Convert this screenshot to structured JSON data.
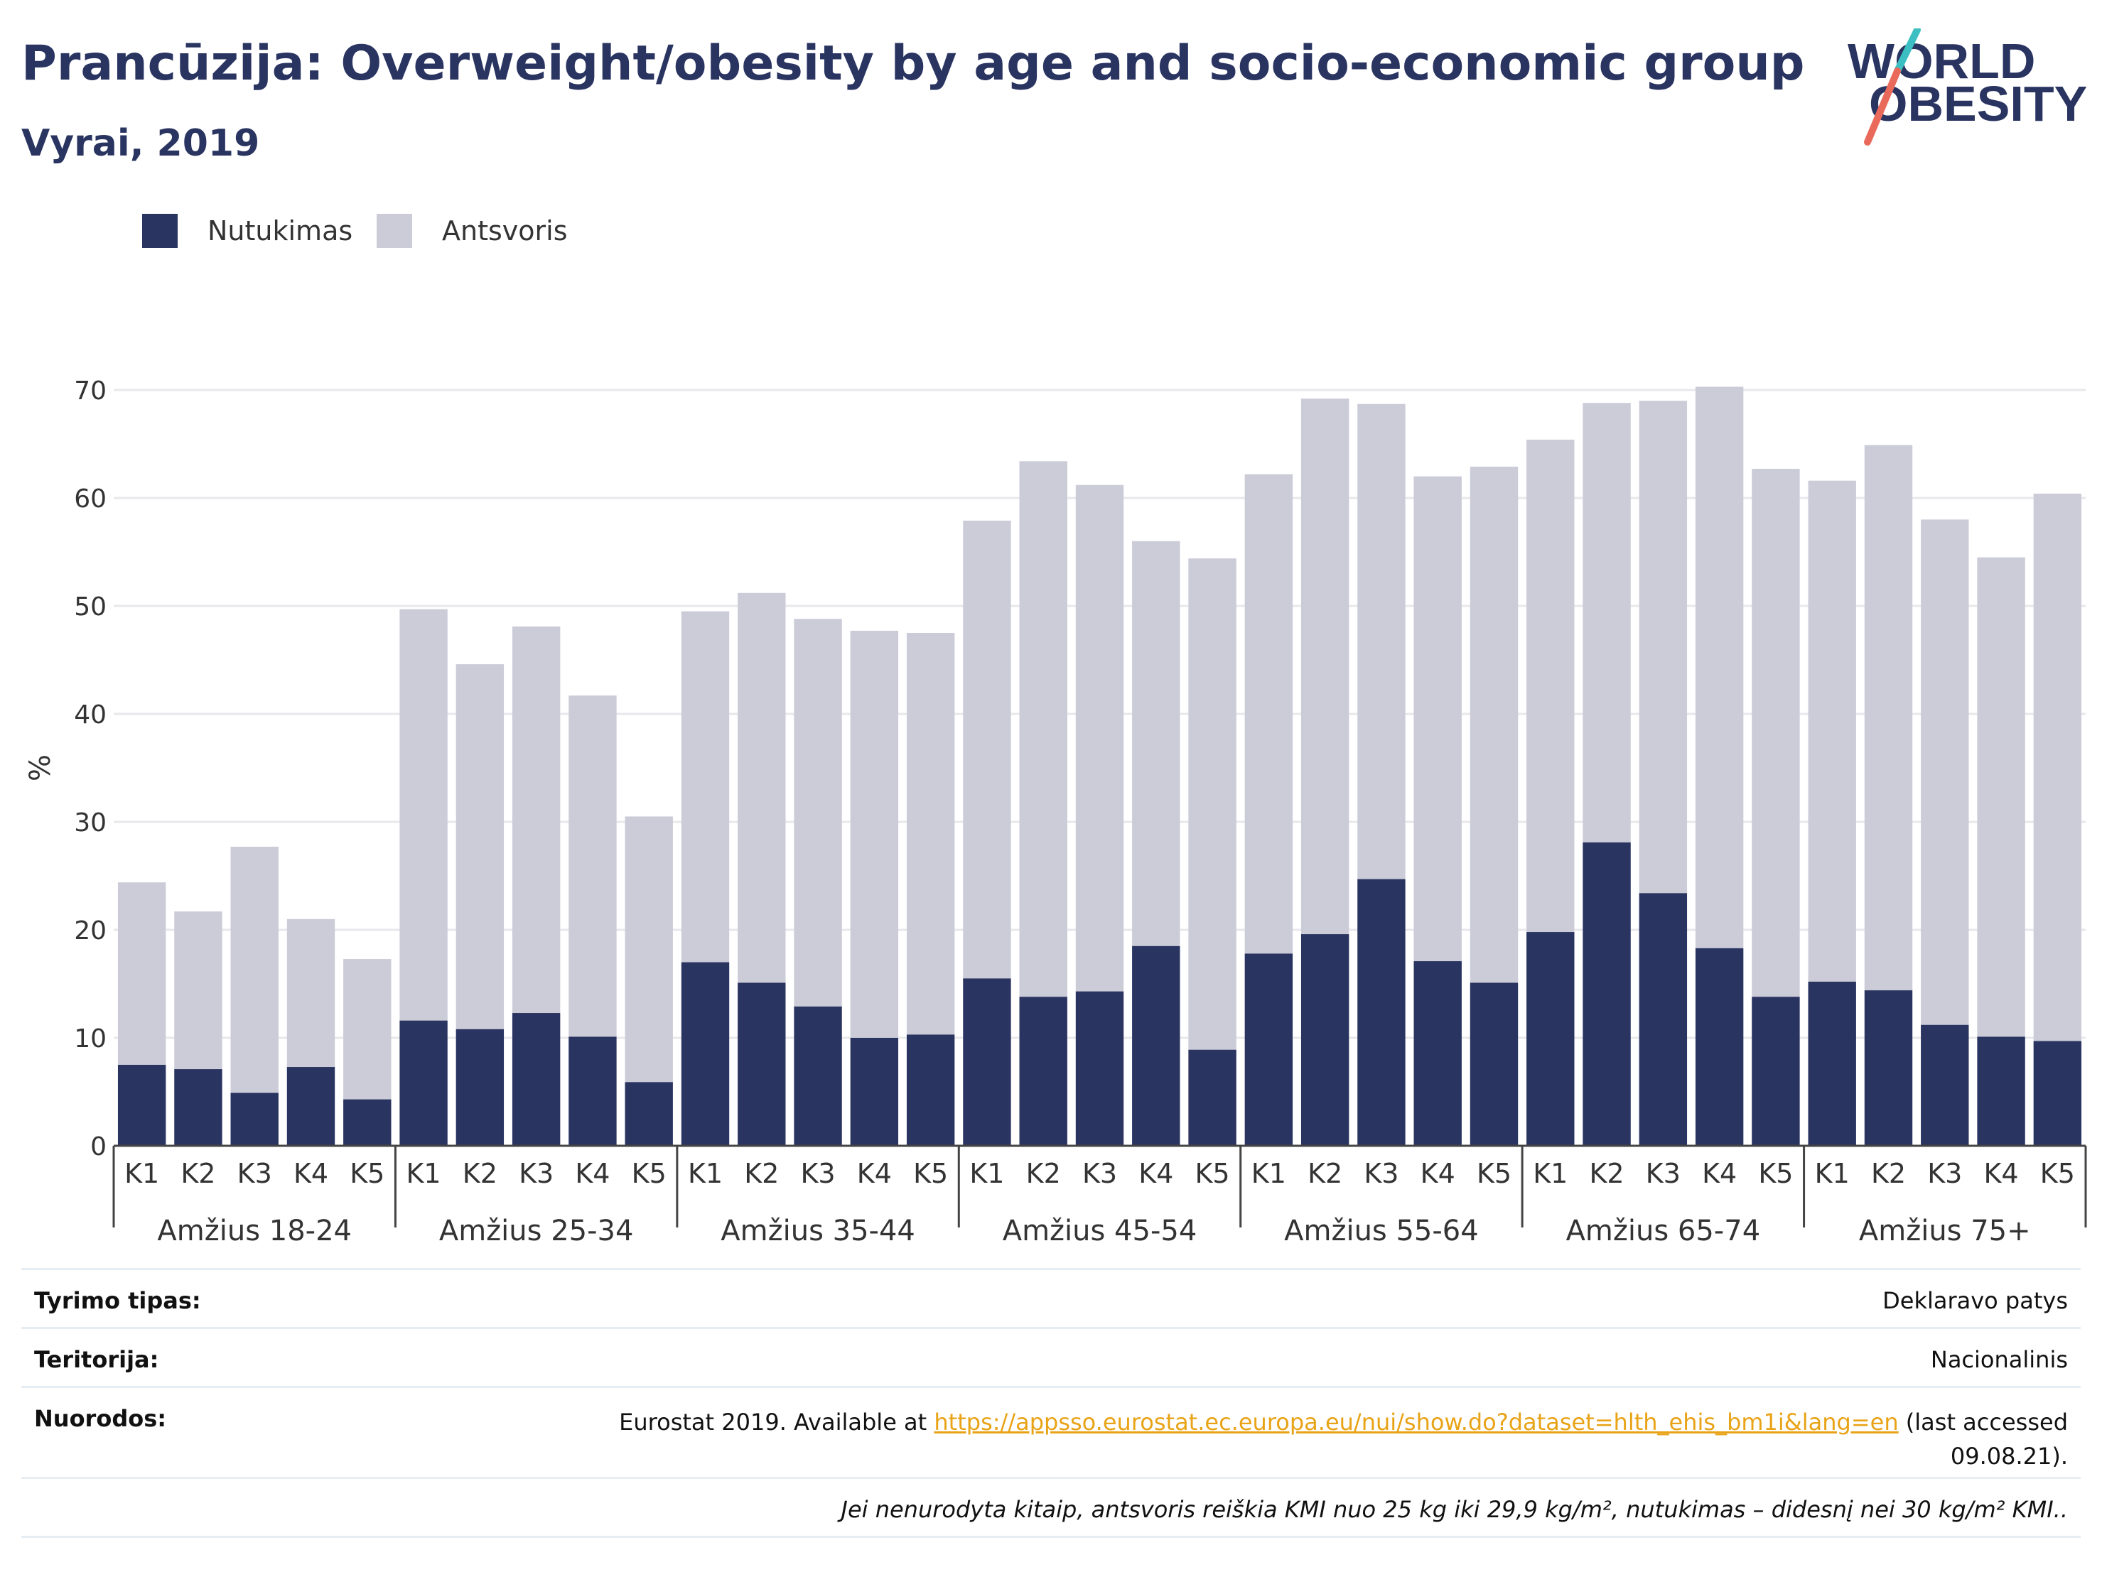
{
  "header": {
    "title": "Prancūzija: Overweight/obesity by age and socio-economic group",
    "subtitle": "Vyrai, 2019"
  },
  "logo": {
    "line1": "WORLD",
    "line2": "OBESITY",
    "slash_teal": "#3cbfc2",
    "slash_coral": "#e96a5a"
  },
  "colors": {
    "obesity": "#2a3461",
    "overweight": "#cbccd8",
    "text": "#2a3461",
    "grid": "#e8e8ec",
    "link": "#e8a317"
  },
  "legend": [
    {
      "label": "Nutukimas",
      "color": "#2a3461"
    },
    {
      "label": "Antsvoris",
      "color": "#cbccd8"
    }
  ],
  "chart_data": {
    "type": "bar",
    "stacked": true,
    "ylabel": "%",
    "xlabel": "",
    "ylim": [
      0,
      72
    ],
    "yticks": [
      0,
      10,
      20,
      30,
      40,
      50,
      60,
      70
    ],
    "grid": true,
    "legend_position": "top-left",
    "subcategories": [
      "K1",
      "K2",
      "K3",
      "K4",
      "K5"
    ],
    "groups": [
      {
        "label": "Amžius 18-24",
        "obesity": [
          7.5,
          7.1,
          4.9,
          7.3,
          4.3
        ],
        "total": [
          24.4,
          21.7,
          27.7,
          21.0,
          17.3
        ]
      },
      {
        "label": "Amžius 25-34",
        "obesity": [
          11.6,
          10.8,
          12.3,
          10.1,
          5.9
        ],
        "total": [
          49.7,
          44.6,
          48.1,
          41.7,
          30.5
        ]
      },
      {
        "label": "Amžius 35-44",
        "obesity": [
          17.0,
          15.1,
          12.9,
          10.0,
          10.3
        ],
        "total": [
          49.5,
          51.2,
          48.8,
          47.7,
          47.5
        ]
      },
      {
        "label": "Amžius 45-54",
        "obesity": [
          15.5,
          13.8,
          14.3,
          18.5,
          8.9
        ],
        "total": [
          57.9,
          63.4,
          61.2,
          56.0,
          54.4
        ]
      },
      {
        "label": "Amžius 55-64",
        "obesity": [
          17.8,
          19.6,
          24.7,
          17.1,
          15.1
        ],
        "total": [
          62.2,
          69.2,
          68.7,
          62.0,
          62.9
        ]
      },
      {
        "label": "Amžius 65-74",
        "obesity": [
          19.8,
          28.1,
          23.4,
          18.3,
          13.8
        ],
        "total": [
          65.4,
          68.8,
          69.0,
          70.3,
          62.7
        ]
      },
      {
        "label": "Amžius 75+",
        "obesity": [
          15.2,
          14.4,
          11.2,
          10.1,
          9.7
        ],
        "total": [
          61.6,
          64.9,
          58.0,
          54.5,
          60.4
        ]
      }
    ],
    "series": [
      {
        "name": "Nutukimas",
        "values_key": "obesity"
      },
      {
        "name": "Antsvoris",
        "values_key": "total"
      }
    ]
  },
  "info": {
    "rows": [
      {
        "key": "Tyrimo tipas:",
        "value": "Deklaravo patys"
      },
      {
        "key": "Teritorija:",
        "value": "Nacionalinis"
      }
    ],
    "references": {
      "key": "Nuorodos:",
      "prefix": "Eurostat 2019. Available at ",
      "url": "https://appsso.eurostat.ec.europa.eu/nui/show.do?dataset=hlth_ehis_bm1i&lang=en",
      "suffix": " (last accessed",
      "suffix2": "09.08.21)."
    },
    "note": "Jei nenurodyta kitaip, antsvoris reiškia KMI nuo 25 kg iki 29,9 kg/m², nutukimas – didesnį nei 30 kg/m² KMI.."
  }
}
